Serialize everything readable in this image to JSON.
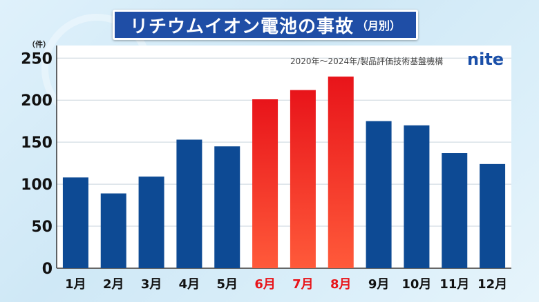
{
  "title": {
    "main": "リチウムイオン電池の事故",
    "sub": "（月別）"
  },
  "unit_label": "（件）",
  "source": "2020年～2024年/製品評価技術基盤機構",
  "logo_text": "nite",
  "colors": {
    "normal": "#0d4a94",
    "highlight": "#e8141a",
    "title_bg": "#1f4ea6"
  },
  "chart_data": {
    "type": "bar",
    "title": "リチウムイオン電池の事故（月別）",
    "xlabel": "",
    "ylabel": "（件）",
    "categories": [
      "1月",
      "2月",
      "3月",
      "4月",
      "5月",
      "6月",
      "7月",
      "8月",
      "9月",
      "10月",
      "11月",
      "12月"
    ],
    "values": [
      108,
      89,
      109,
      153,
      145,
      201,
      212,
      228,
      175,
      170,
      137,
      124
    ],
    "highlighted": [
      "6月",
      "7月",
      "8月"
    ],
    "ylim": [
      0,
      265
    ],
    "yticks": [
      0,
      50,
      100,
      150,
      200,
      250
    ],
    "grid": true
  }
}
